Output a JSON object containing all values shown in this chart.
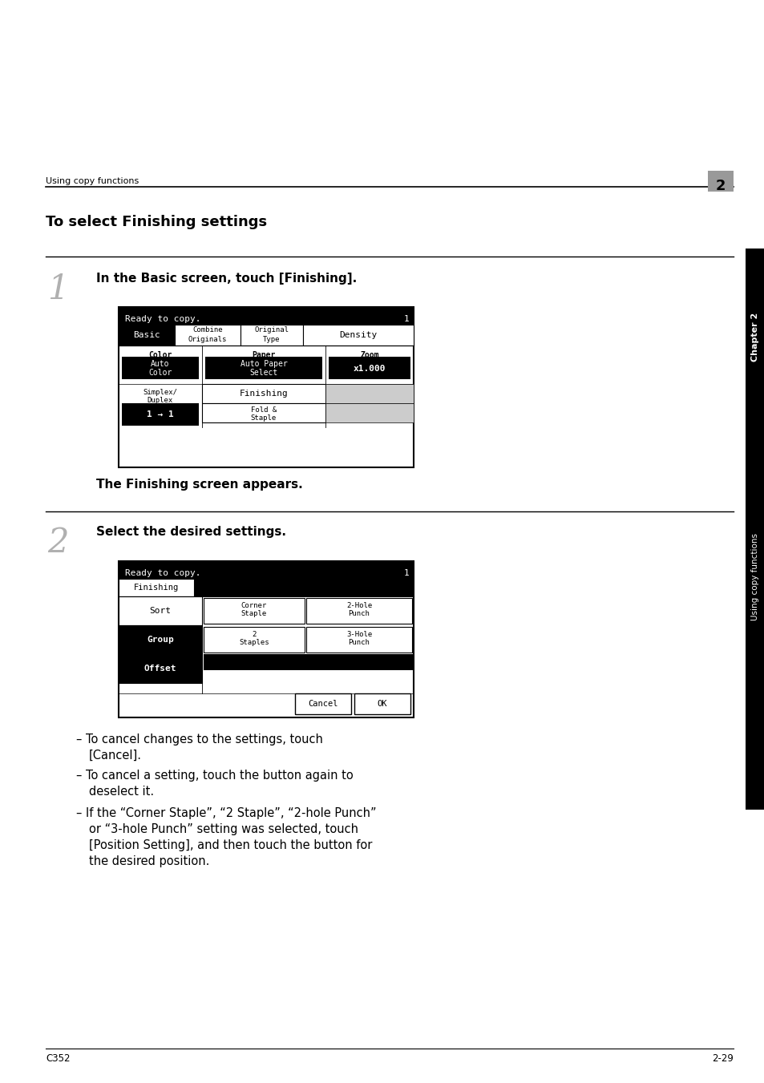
{
  "bg_color": "#ffffff",
  "page_width": 9.54,
  "page_height": 13.51,
  "dpi": 100,
  "header_text": "Using copy functions",
  "header_num": "2",
  "title": "To select Finishing settings",
  "step1_num": "1",
  "step1_text": "In the Basic screen, touch [Finishing].",
  "step1_subtext": "The Finishing screen appears.",
  "step2_num": "2",
  "step2_text": "Select the desired settings.",
  "bullet1a": "– To cancel changes to the settings, touch",
  "bullet1b": "   [Cancel].",
  "bullet2a": "– To cancel a setting, touch the button again to",
  "bullet2b": "   deselect it.",
  "bullet3a": "– If the “Corner Staple”, “2 Staple”, “2-hole Punch”",
  "bullet3b": "   or “3-hole Punch” setting was selected, touch",
  "bullet3c": "   [Position Setting], and then touch the button for",
  "bullet3d": "   the desired position.",
  "footer_left": "C352",
  "footer_right": "2-29",
  "sidebar_chap": "Chapter 2",
  "sidebar_text": "Using copy functions"
}
